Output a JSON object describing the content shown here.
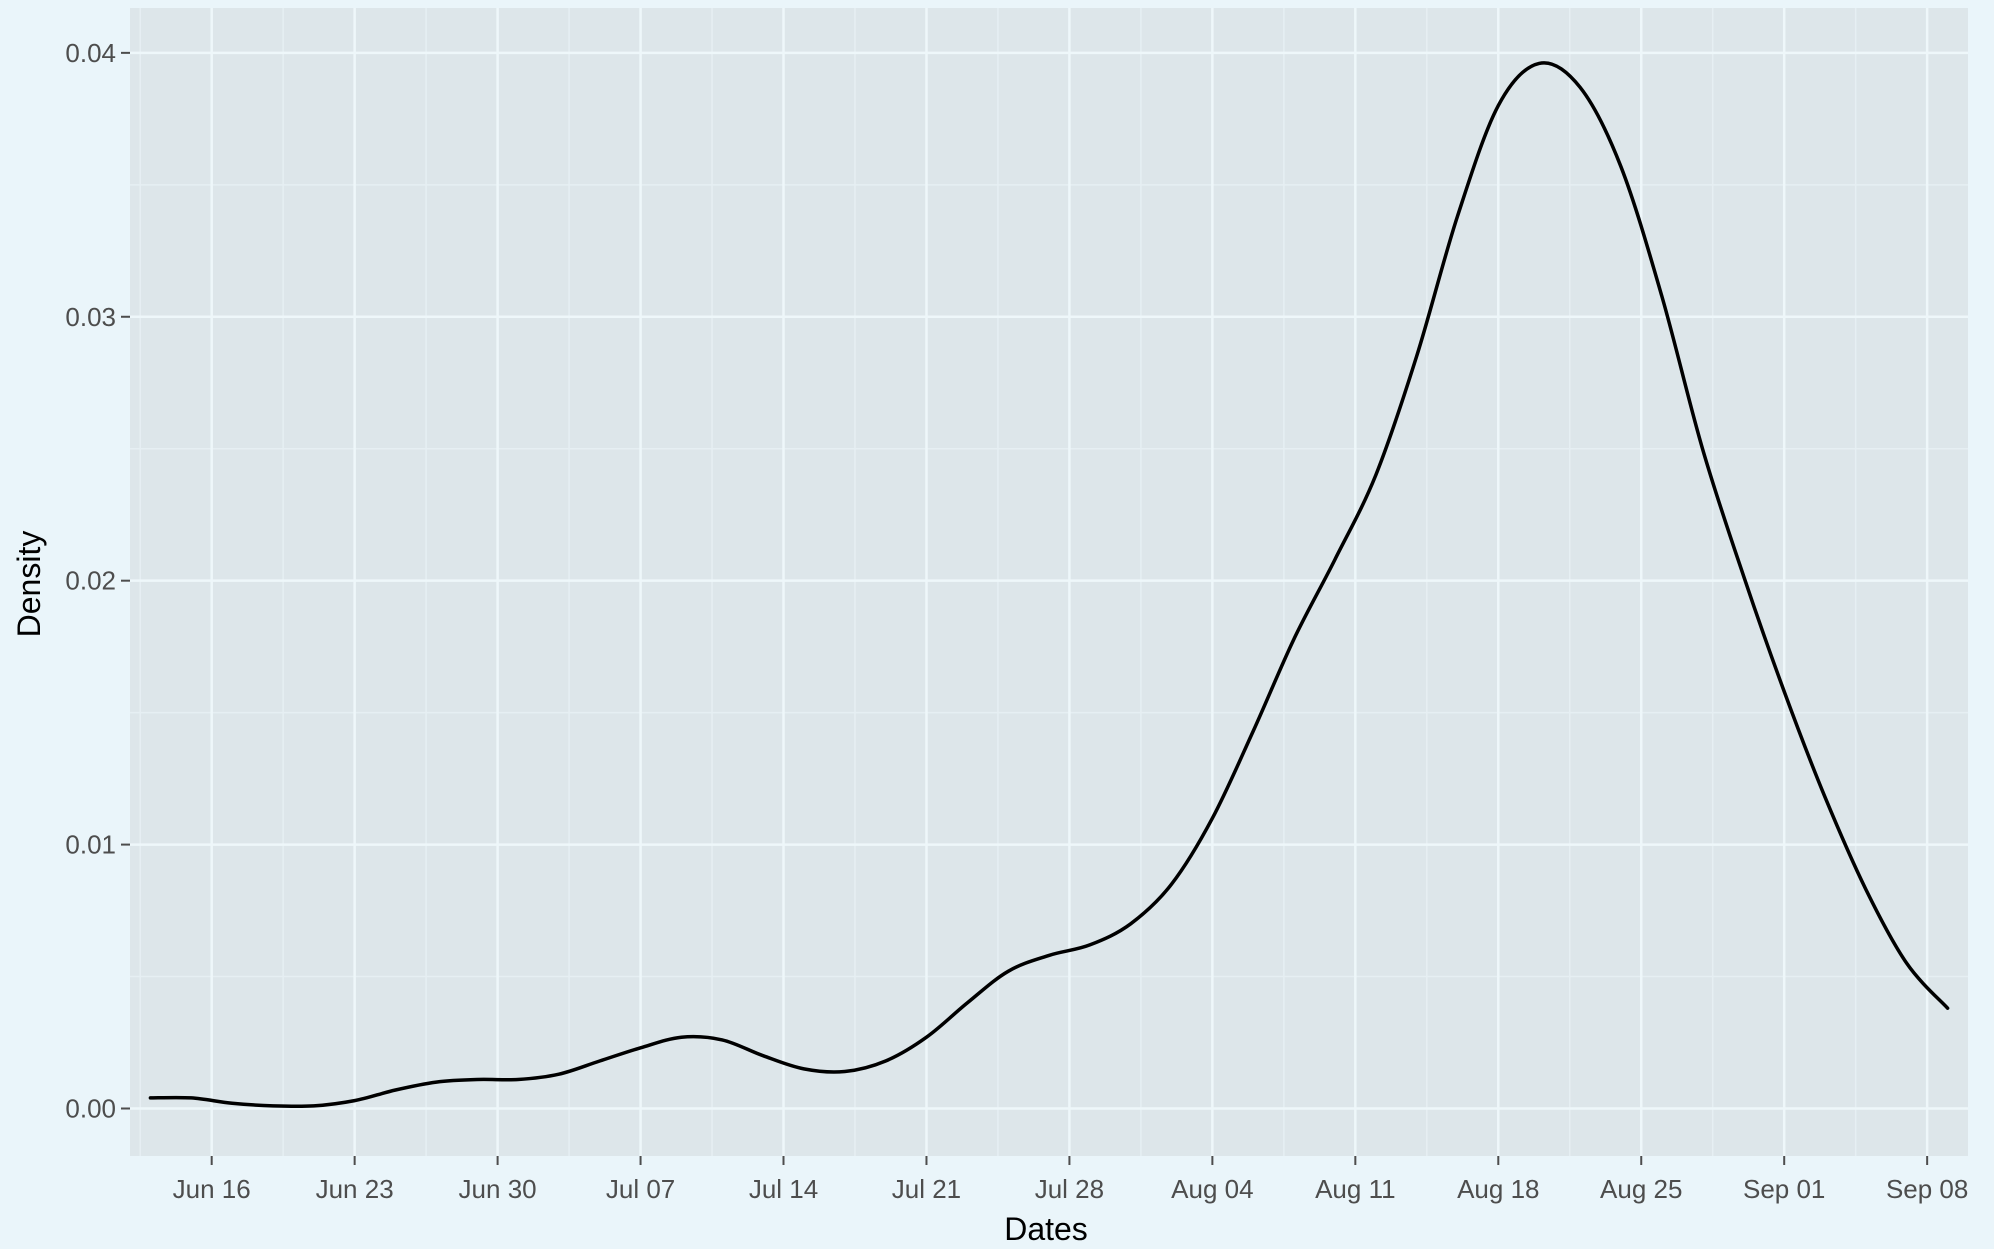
{
  "chart_data": {
    "type": "line",
    "title": "",
    "xlabel": "Dates",
    "ylabel": "Density",
    "x_ticks": [
      {
        "date": "2020-06-16",
        "label": "Jun 16"
      },
      {
        "date": "2020-06-23",
        "label": "Jun 23"
      },
      {
        "date": "2020-06-30",
        "label": "Jun 30"
      },
      {
        "date": "2020-07-07",
        "label": "Jul 07"
      },
      {
        "date": "2020-07-14",
        "label": "Jul 14"
      },
      {
        "date": "2020-07-21",
        "label": "Jul 21"
      },
      {
        "date": "2020-07-28",
        "label": "Jul 28"
      },
      {
        "date": "2020-08-04",
        "label": "Aug 04"
      },
      {
        "date": "2020-08-11",
        "label": "Aug 11"
      },
      {
        "date": "2020-08-18",
        "label": "Aug 18"
      },
      {
        "date": "2020-08-25",
        "label": "Aug 25"
      },
      {
        "date": "2020-09-01",
        "label": "Sep 01"
      },
      {
        "date": "2020-09-08",
        "label": "Sep 08"
      }
    ],
    "y_ticks": [
      {
        "value": 0.0,
        "label": "0.00"
      },
      {
        "value": 0.01,
        "label": "0.01"
      },
      {
        "value": 0.02,
        "label": "0.02"
      },
      {
        "value": 0.03,
        "label": "0.03"
      },
      {
        "value": 0.04,
        "label": "0.04"
      }
    ],
    "xlim": [
      "2020-06-12",
      "2020-09-10"
    ],
    "ylim": [
      -0.0018,
      0.0417
    ],
    "grid": true,
    "colors": {
      "page_background": "#eaf5fa",
      "panel_background": "#dde6ea",
      "grid_major": "#eef7fa",
      "grid_minor": "#e6eff3",
      "line": "#000000",
      "axis_text": "#4d4d4d",
      "axis_title": "#000000",
      "tick_mark": "#4d4d4d"
    },
    "series": [
      {
        "x": [
          "2020-06-13",
          "2020-06-15",
          "2020-06-17",
          "2020-06-19",
          "2020-06-21",
          "2020-06-23",
          "2020-06-25",
          "2020-06-27",
          "2020-06-29",
          "2020-07-01",
          "2020-07-03",
          "2020-07-05",
          "2020-07-07",
          "2020-07-09",
          "2020-07-11",
          "2020-07-13",
          "2020-07-15",
          "2020-07-17",
          "2020-07-19",
          "2020-07-21",
          "2020-07-23",
          "2020-07-25",
          "2020-07-27",
          "2020-07-29",
          "2020-07-31",
          "2020-08-02",
          "2020-08-04",
          "2020-08-06",
          "2020-08-08",
          "2020-08-10",
          "2020-08-12",
          "2020-08-14",
          "2020-08-16",
          "2020-08-18",
          "2020-08-20",
          "2020-08-22",
          "2020-08-24",
          "2020-08-26",
          "2020-08-28",
          "2020-08-30",
          "2020-09-01",
          "2020-09-03",
          "2020-09-05",
          "2020-09-07",
          "2020-09-09"
        ],
        "y": [
          0.0004,
          0.0004,
          0.0002,
          0.0001,
          0.0001,
          0.0003,
          0.0007,
          0.001,
          0.0011,
          0.0011,
          0.0013,
          0.0018,
          0.0023,
          0.0027,
          0.0026,
          0.002,
          0.0015,
          0.0014,
          0.0018,
          0.0027,
          0.004,
          0.0052,
          0.0058,
          0.0062,
          0.007,
          0.0085,
          0.011,
          0.0143,
          0.0178,
          0.0208,
          0.024,
          0.0285,
          0.0338,
          0.038,
          0.0396,
          0.0387,
          0.0357,
          0.0308,
          0.025,
          0.0202,
          0.0158,
          0.0118,
          0.0083,
          0.0055,
          0.0038
        ]
      }
    ]
  }
}
